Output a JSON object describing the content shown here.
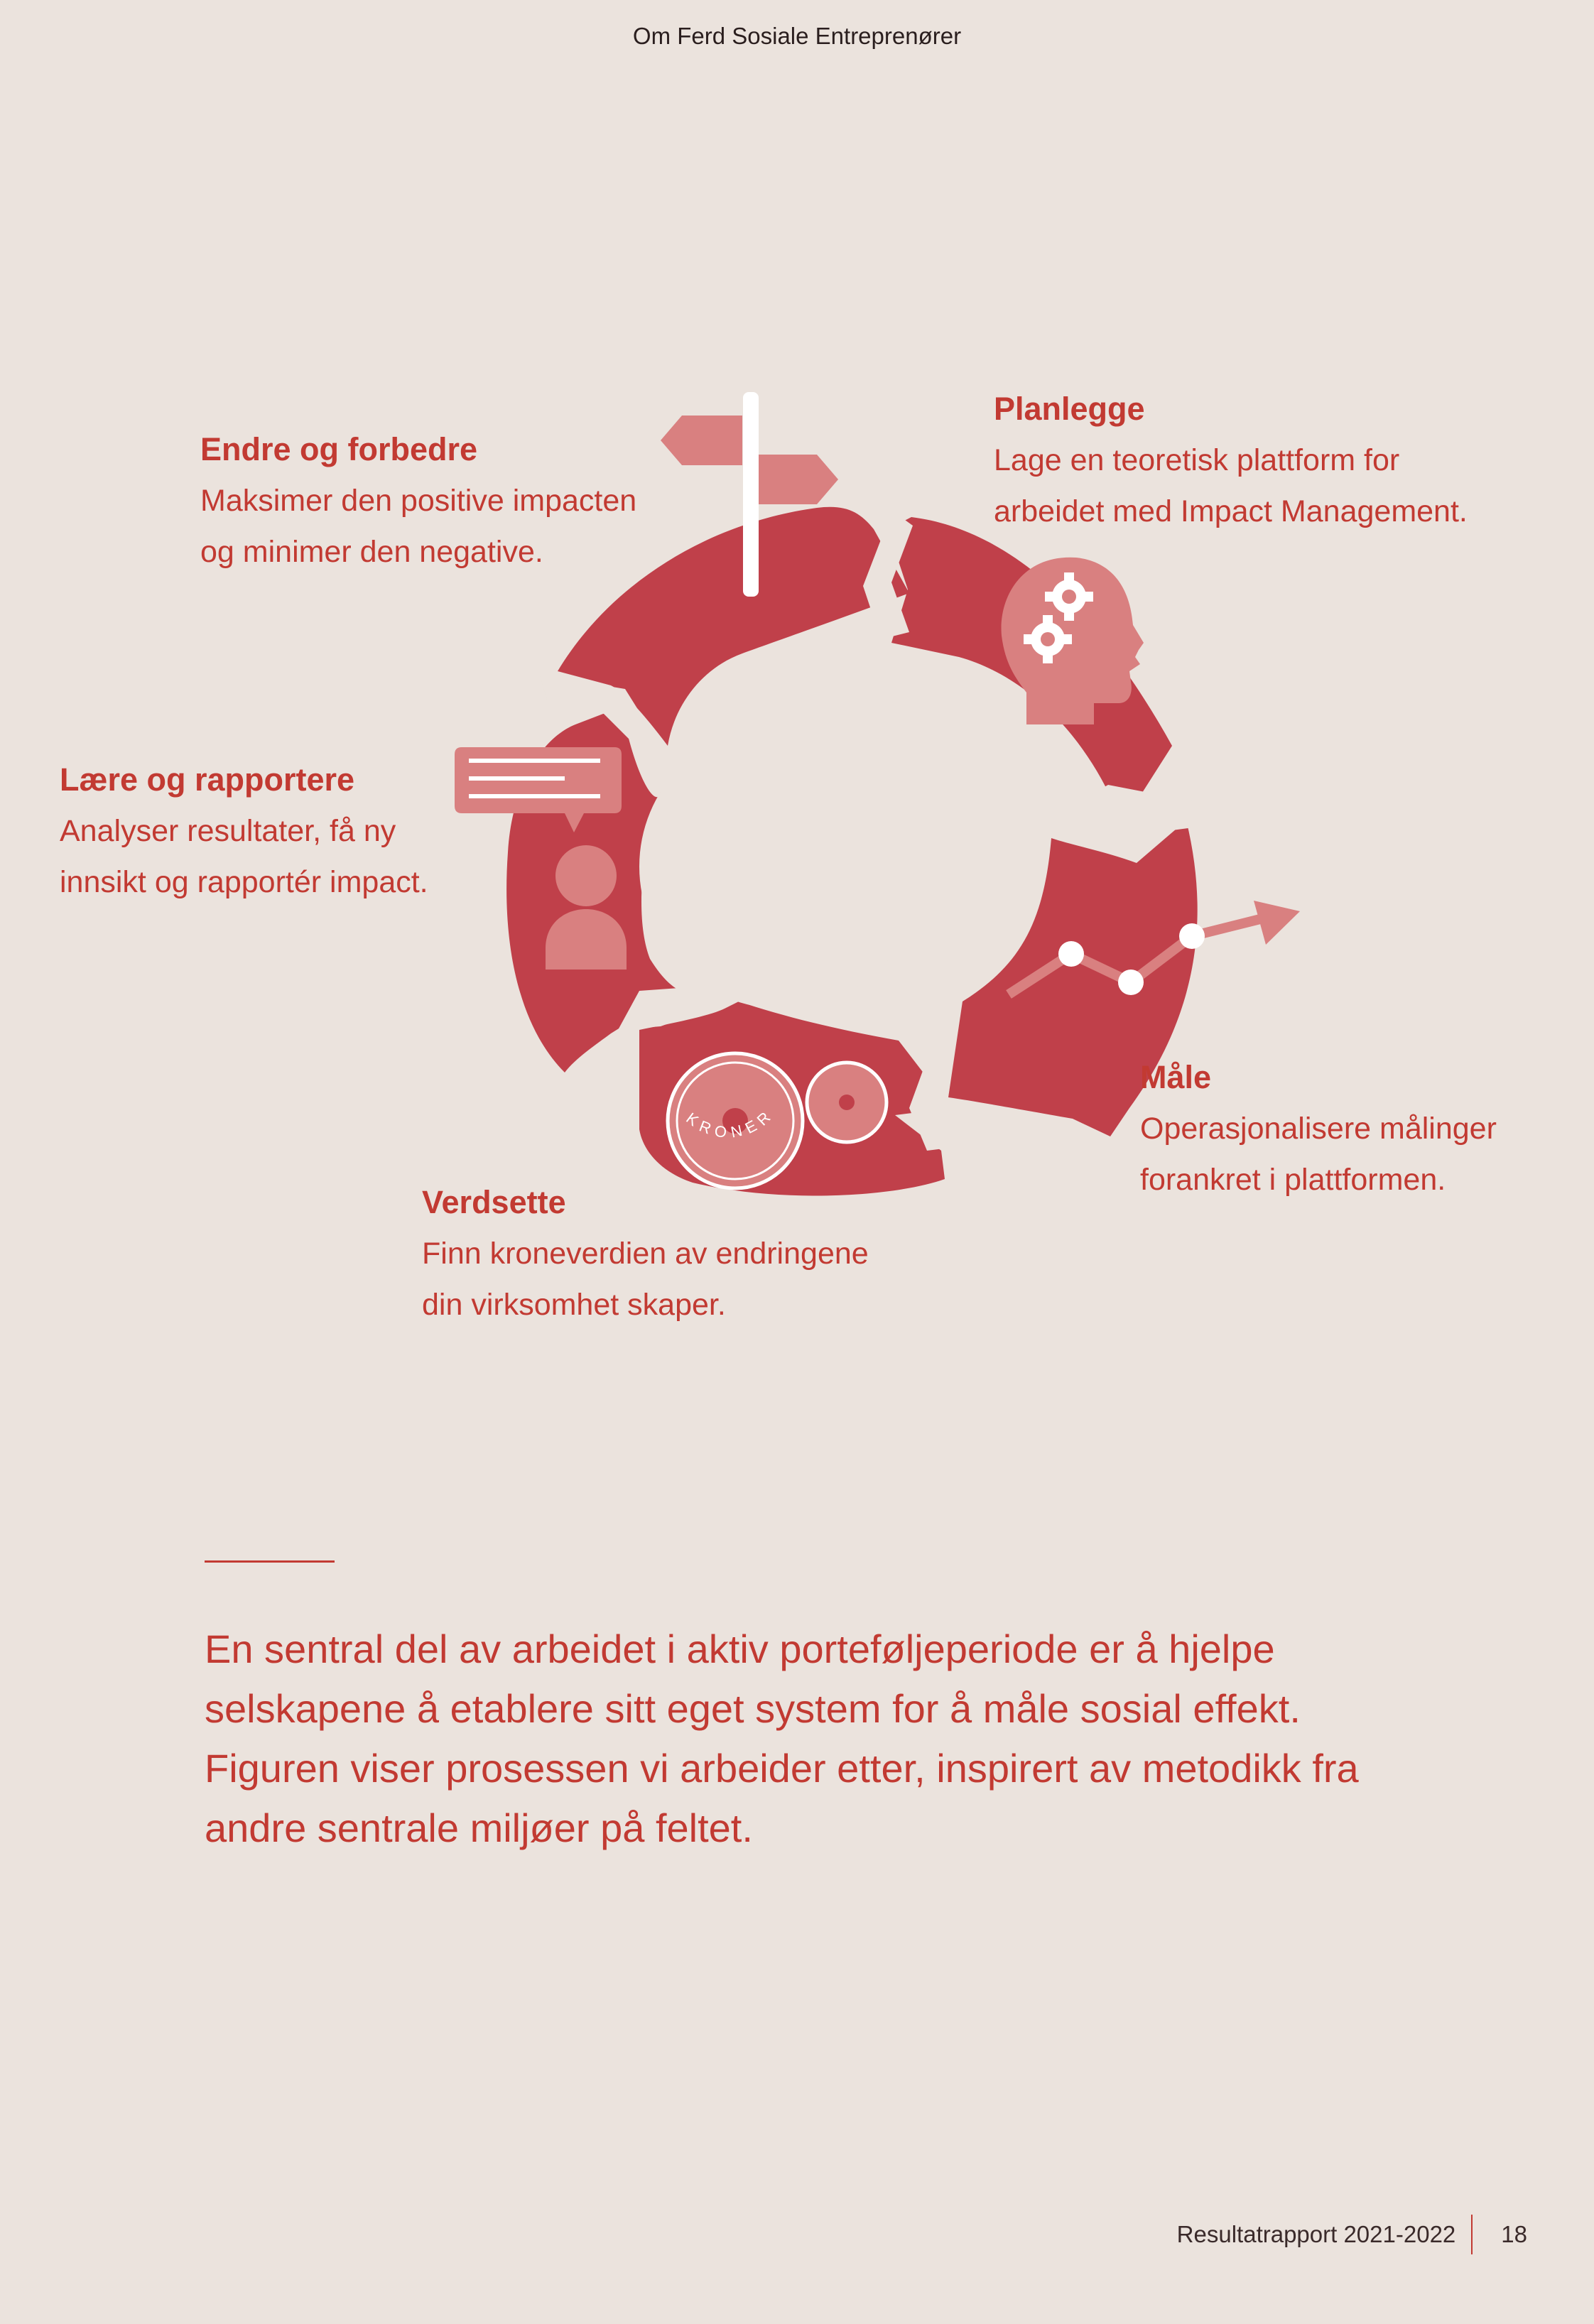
{
  "header": {
    "section_title": "Om Ferd Sosiale Entreprenører"
  },
  "diagram": {
    "stages": [
      {
        "title": "Planlegge",
        "description": "Lage en teoretisk plattform for\narbeidet med Impact Management.",
        "icon": "head-gears-icon"
      },
      {
        "title": "Måle",
        "description": "Operasjonalisere målinger\nforankret i plattformen.",
        "icon": "line-graph-arrow-icon"
      },
      {
        "title": "Verdsette",
        "description": "Finn kroneverdien av endringene\ndin virksomhet skaper.",
        "icon": "coins-icon",
        "coin_text": "KRONER"
      },
      {
        "title": "Lære og rapportere",
        "description": "Analyser resultater, få ny\ninnsikt og rapportér impact.",
        "icon": "person-speech-bubble-icon"
      },
      {
        "title": "Endre og forbedre",
        "description": "Maksimer den positive impacten\nog minimer den negative.",
        "icon": "signpost-icon"
      }
    ],
    "colors": {
      "ring": "#c0404a",
      "icon": "#d98080",
      "text": "#c23a32",
      "background": "#ebe3dd"
    }
  },
  "intro": {
    "text": "En sentral del av arbeidet i aktiv porteføljeperiode er å hjelpe selskapene å etablere sitt eget system for å måle sosial effekt. Figuren viser prosessen vi arbeider etter, inspirert av metodikk fra andre sentrale miljøer på feltet."
  },
  "footer": {
    "report_title": "Resultatrapport 2021-2022",
    "page_number": "18"
  }
}
